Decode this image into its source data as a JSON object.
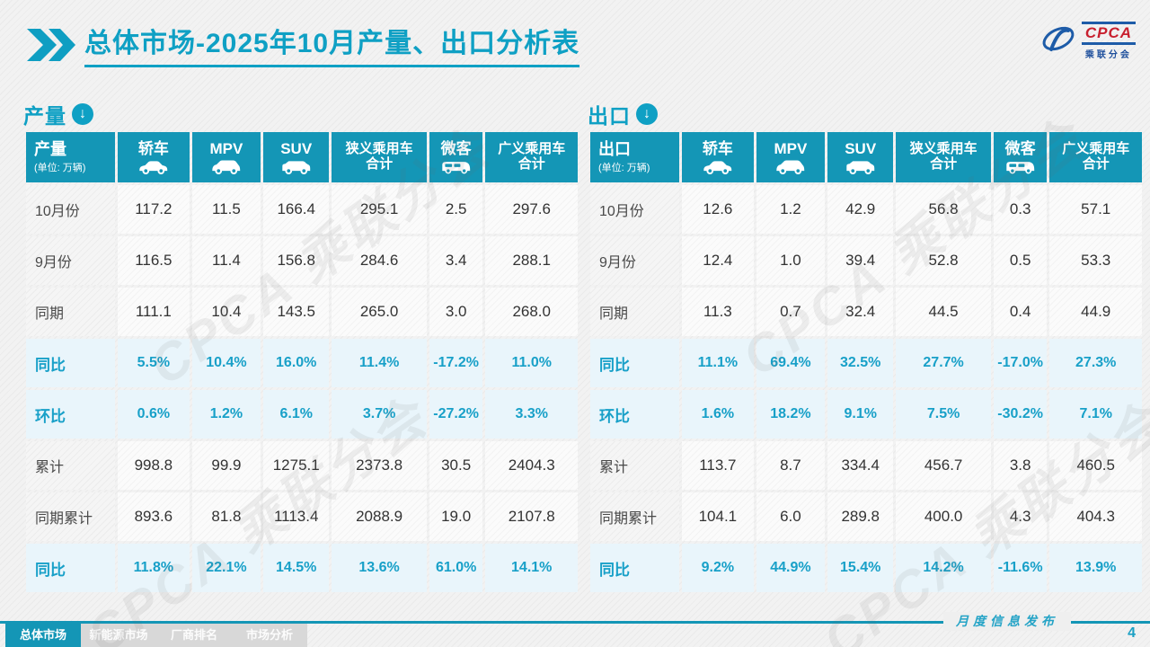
{
  "title": "总体市场-2025年10月产量、出口分析表",
  "logo": {
    "acronym": "CPCA",
    "name": "乘联分会"
  },
  "watermark": "CPCA 乘联分会",
  "colors": {
    "accent_teal": "#1496b6",
    "title_teal": "#0fa0c4",
    "percent_text": "#18a0c8",
    "percent_row_bg": "#e9f5fb",
    "logo_blue": "#1e5ca8",
    "logo_red": "#c8202f"
  },
  "footer": {
    "note": "月度信息发布",
    "page_number": "4",
    "tabs": [
      {
        "label": "总体市场",
        "active": true
      },
      {
        "label": "新能源市场",
        "active": false
      },
      {
        "label": "厂商排名",
        "active": false
      },
      {
        "label": "市场分析",
        "active": false
      }
    ]
  },
  "tables": [
    {
      "id": "production",
      "section_label": "产量",
      "corner": {
        "title": "产量",
        "unit": "(单位: 万辆)"
      },
      "columns": [
        {
          "label": "轿车",
          "icon": "sedan-icon"
        },
        {
          "label": "MPV",
          "icon": "mpv-icon"
        },
        {
          "label": "SUV",
          "icon": "suv-icon"
        },
        {
          "label": "狭义乘用车",
          "label2": "合计",
          "icon": null
        },
        {
          "label": "微客",
          "icon": "minibus-icon"
        },
        {
          "label": "广义乘用车",
          "label2": "合计",
          "icon": null
        }
      ],
      "rows": [
        {
          "label": "10月份",
          "type": "data",
          "values": [
            "117.2",
            "11.5",
            "166.4",
            "295.1",
            "2.5",
            "297.6"
          ]
        },
        {
          "label": "9月份",
          "type": "data",
          "values": [
            "116.5",
            "11.4",
            "156.8",
            "284.6",
            "3.4",
            "288.1"
          ]
        },
        {
          "label": "同期",
          "type": "data",
          "values": [
            "111.1",
            "10.4",
            "143.5",
            "265.0",
            "3.0",
            "268.0"
          ]
        },
        {
          "label": "同比",
          "type": "percent",
          "values": [
            "5.5%",
            "10.4%",
            "16.0%",
            "11.4%",
            "-17.2%",
            "11.0%"
          ]
        },
        {
          "label": "环比",
          "type": "percent",
          "values": [
            "0.6%",
            "1.2%",
            "6.1%",
            "3.7%",
            "-27.2%",
            "3.3%"
          ]
        },
        {
          "label": "累计",
          "type": "data",
          "values": [
            "998.8",
            "99.9",
            "1275.1",
            "2373.8",
            "30.5",
            "2404.3"
          ]
        },
        {
          "label": "同期累计",
          "type": "data",
          "values": [
            "893.6",
            "81.8",
            "1113.4",
            "2088.9",
            "19.0",
            "2107.8"
          ]
        },
        {
          "label": "同比",
          "type": "percent",
          "values": [
            "11.8%",
            "22.1%",
            "14.5%",
            "13.6%",
            "61.0%",
            "14.1%"
          ]
        }
      ]
    },
    {
      "id": "export",
      "section_label": "出口",
      "corner": {
        "title": "出口",
        "unit": "(单位: 万辆)"
      },
      "columns": [
        {
          "label": "轿车",
          "icon": "sedan-icon"
        },
        {
          "label": "MPV",
          "icon": "mpv-icon"
        },
        {
          "label": "SUV",
          "icon": "suv-icon"
        },
        {
          "label": "狭义乘用车",
          "label2": "合计",
          "icon": null
        },
        {
          "label": "微客",
          "icon": "minibus-icon"
        },
        {
          "label": "广义乘用车",
          "label2": "合计",
          "icon": null
        }
      ],
      "rows": [
        {
          "label": "10月份",
          "type": "data",
          "values": [
            "12.6",
            "1.2",
            "42.9",
            "56.8",
            "0.3",
            "57.1"
          ]
        },
        {
          "label": "9月份",
          "type": "data",
          "values": [
            "12.4",
            "1.0",
            "39.4",
            "52.8",
            "0.5",
            "53.3"
          ]
        },
        {
          "label": "同期",
          "type": "data",
          "values": [
            "11.3",
            "0.7",
            "32.4",
            "44.5",
            "0.4",
            "44.9"
          ]
        },
        {
          "label": "同比",
          "type": "percent",
          "values": [
            "11.1%",
            "69.4%",
            "32.5%",
            "27.7%",
            "-17.0%",
            "27.3%"
          ]
        },
        {
          "label": "环比",
          "type": "percent",
          "values": [
            "1.6%",
            "18.2%",
            "9.1%",
            "7.5%",
            "-30.2%",
            "7.1%"
          ]
        },
        {
          "label": "累计",
          "type": "data",
          "values": [
            "113.7",
            "8.7",
            "334.4",
            "456.7",
            "3.8",
            "460.5"
          ]
        },
        {
          "label": "同期累计",
          "type": "data",
          "values": [
            "104.1",
            "6.0",
            "289.8",
            "400.0",
            "4.3",
            "404.3"
          ]
        },
        {
          "label": "同比",
          "type": "percent",
          "values": [
            "9.2%",
            "44.9%",
            "15.4%",
            "14.2%",
            "-11.6%",
            "13.9%"
          ]
        }
      ]
    }
  ]
}
